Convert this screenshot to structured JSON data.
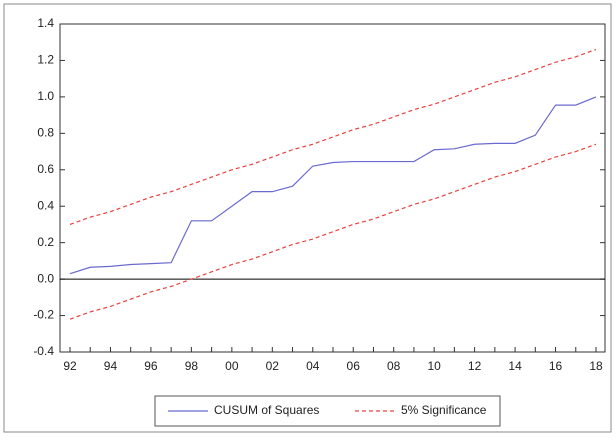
{
  "chart_data": {
    "type": "line",
    "categories": [
      "92",
      null,
      "94",
      null,
      "96",
      null,
      "98",
      null,
      "00",
      null,
      "02",
      null,
      "04",
      null,
      "06",
      null,
      "08",
      null,
      "10",
      null,
      "12",
      null,
      "14",
      null,
      "16",
      null,
      "18"
    ],
    "series": [
      {
        "name": "CUSUM of Squares",
        "color": "#6a6ad0",
        "dashed": false,
        "values": [
          0.03,
          0.065,
          0.07,
          0.08,
          0.085,
          0.09,
          0.32,
          0.32,
          0.4,
          0.48,
          0.48,
          0.51,
          0.62,
          0.64,
          0.645,
          0.645,
          0.645,
          0.645,
          0.71,
          0.715,
          0.74,
          0.745,
          0.745,
          0.79,
          0.955,
          0.955,
          1.0
        ]
      },
      {
        "name": "5% Significance",
        "color": "#e8413c",
        "dashed": true,
        "values": [
          0.3,
          0.34,
          0.37,
          0.41,
          0.45,
          0.48,
          0.52,
          0.56,
          0.6,
          0.63,
          0.67,
          0.71,
          0.74,
          0.78,
          0.82,
          0.85,
          0.89,
          0.93,
          0.96,
          1.0,
          1.04,
          1.08,
          1.11,
          1.15,
          1.19,
          1.22,
          1.26
        ],
        "lower": [
          -0.22,
          -0.18,
          -0.15,
          -0.11,
          -0.07,
          -0.04,
          0.0,
          0.04,
          0.08,
          0.11,
          0.15,
          0.19,
          0.22,
          0.26,
          0.3,
          0.33,
          0.37,
          0.41,
          0.44,
          0.48,
          0.52,
          0.56,
          0.59,
          0.63,
          0.67,
          0.7,
          0.74
        ]
      }
    ],
    "ylim": [
      -0.4,
      1.4
    ],
    "yticks": [
      -0.4,
      -0.2,
      {
        "value": 0,
        "label": "0.0"
      },
      0.2,
      0.4,
      0.6,
      0.8,
      {
        "value": 1,
        "label": "1.0"
      },
      1.2,
      1.4
    ],
    "zero_line": true,
    "grid": false
  }
}
